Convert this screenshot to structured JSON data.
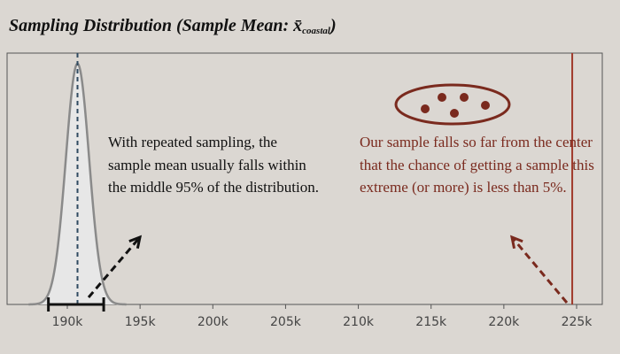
{
  "title": {
    "main": "Sampling Distribution (Sample Mean: ",
    "symbol": "x̄",
    "subscript": "coastal",
    "close": ")"
  },
  "annotations": {
    "left": "With repeated sampling, the sample mean usually falls within the middle 95% of the distribution.",
    "right": "Our sample falls so far from the center that the chance of getting a sample this extreme (or more) is less than 5%."
  },
  "colors": {
    "background": "#dbd7d2",
    "curve": "#8a8a8a",
    "curve_fill": "#e7e7e7",
    "mean_line": "#2f4a60",
    "sample_line": "#a0392a",
    "annotation_right": "#7a2a1e",
    "arrow_left": "#111111",
    "arrow_right": "#7a2a1e"
  },
  "chart_data": {
    "type": "area",
    "x_ticks": [
      190000,
      195000,
      200000,
      205000,
      210000,
      215000,
      220000,
      225000
    ],
    "tick_labels": [
      "190k",
      "195k",
      "200k",
      "205k",
      "210k",
      "215k",
      "220k",
      "225k"
    ],
    "xlim": [
      186500,
      226500
    ],
    "distribution": {
      "shape": "normal",
      "mean": 190700,
      "sd": 800
    },
    "interval_95": [
      188700,
      192500
    ],
    "observed_sample_mean": 224700,
    "grid": false,
    "legend": "none"
  }
}
